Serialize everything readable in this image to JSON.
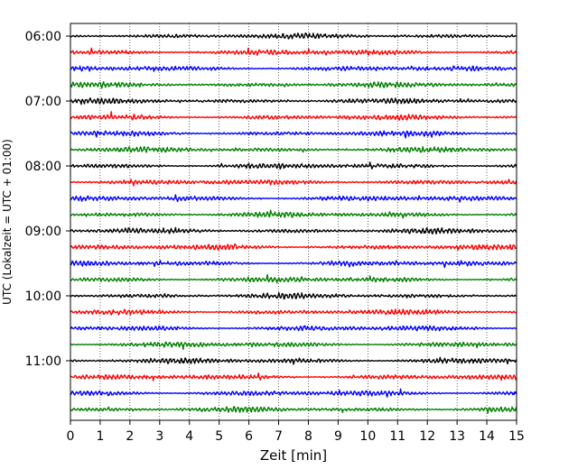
{
  "chart_data": {
    "type": "line",
    "title": "",
    "xlabel": "Zeit  [min]",
    "ylabel": "UTC (Lokalzeit = UTC + 01:00)",
    "xlim": [
      0,
      15
    ],
    "x_ticks": [
      "0",
      "1",
      "2",
      "3",
      "4",
      "5",
      "6",
      "7",
      "8",
      "9",
      "10",
      "11",
      "12",
      "13",
      "14",
      "15"
    ],
    "y_ticks": [
      "06:00",
      "07:00",
      "08:00",
      "09:00",
      "10:00",
      "11:00"
    ],
    "grid": "vertical dotted",
    "trace_interval_min": 15,
    "colors": [
      "#000000",
      "#ff0000",
      "#0000ff",
      "#008000"
    ],
    "series": [
      {
        "start": "06:00",
        "color": "#000000"
      },
      {
        "start": "06:15",
        "color": "#ff0000"
      },
      {
        "start": "06:30",
        "color": "#0000ff"
      },
      {
        "start": "06:45",
        "color": "#008000"
      },
      {
        "start": "07:00",
        "color": "#000000"
      },
      {
        "start": "07:15",
        "color": "#ff0000"
      },
      {
        "start": "07:30",
        "color": "#0000ff"
      },
      {
        "start": "07:45",
        "color": "#008000"
      },
      {
        "start": "08:00",
        "color": "#000000"
      },
      {
        "start": "08:15",
        "color": "#ff0000"
      },
      {
        "start": "08:30",
        "color": "#0000ff"
      },
      {
        "start": "08:45",
        "color": "#008000"
      },
      {
        "start": "09:00",
        "color": "#000000"
      },
      {
        "start": "09:15",
        "color": "#ff0000"
      },
      {
        "start": "09:30",
        "color": "#0000ff"
      },
      {
        "start": "09:45",
        "color": "#008000"
      },
      {
        "start": "10:00",
        "color": "#000000"
      },
      {
        "start": "10:15",
        "color": "#ff0000"
      },
      {
        "start": "10:30",
        "color": "#0000ff"
      },
      {
        "start": "10:45",
        "color": "#008000"
      },
      {
        "start": "11:00",
        "color": "#000000"
      },
      {
        "start": "11:15",
        "color": "#ff0000"
      },
      {
        "start": "11:30",
        "color": "#0000ff"
      },
      {
        "start": "11:45",
        "color": "#008000"
      }
    ]
  }
}
